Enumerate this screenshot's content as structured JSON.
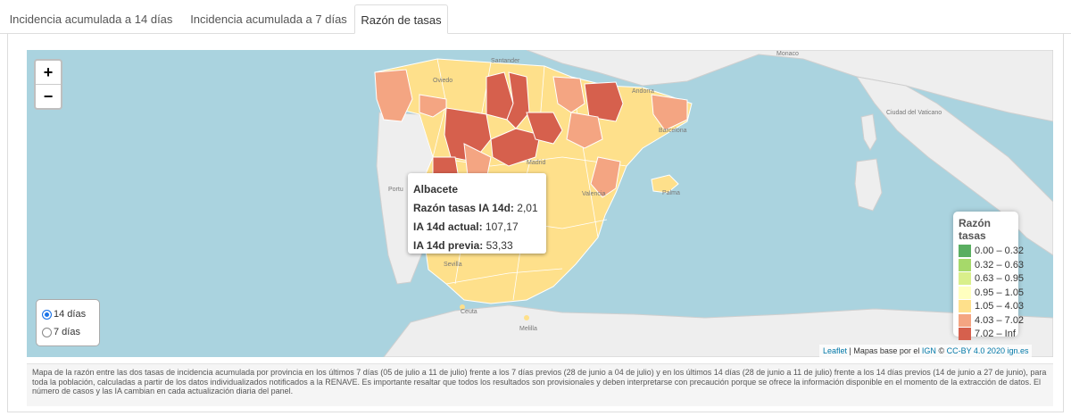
{
  "tabs": [
    {
      "label": "Incidencia acumulada a 14 días",
      "active": false
    },
    {
      "label": "Incidencia acumulada a 7 días",
      "active": false
    },
    {
      "label": "Razón de tasas",
      "active": true
    }
  ],
  "map": {
    "zoom_in": "+",
    "zoom_out": "−",
    "place_labels": {
      "santander": "Santander",
      "oviedo": "Oviedo",
      "andorra": "Andorra",
      "barcelona": "Barcelona",
      "madrid": "Madrid",
      "valencia": "Valencia",
      "palma": "Palma",
      "sevilla": "Sevilla",
      "ceuta": "Ceuta",
      "melilla": "Melilla",
      "portugal": "Portu",
      "vaticano": "Ciudad del Vaticano",
      "monaco": "Monaco"
    },
    "tooltip": {
      "province": "Albacete",
      "ratio_label": "Razón tasas IA 14d:",
      "ratio_value": "2,01",
      "current_label": "IA 14d actual:",
      "current_value": "107,17",
      "previous_label": "IA 14d previa:",
      "previous_value": "53,33"
    },
    "legend": {
      "title": "Razón tasas",
      "items": [
        {
          "label": "0.00 – 0.32",
          "color": "#5aae61"
        },
        {
          "label": "0.32 – 0.63",
          "color": "#a6d96a"
        },
        {
          "label": "0.63 – 0.95",
          "color": "#d9ef8b"
        },
        {
          "label": "0.95 – 1.05",
          "color": "#ffffbf"
        },
        {
          "label": "1.05 – 4.03",
          "color": "#fee08b"
        },
        {
          "label": "4.03 – 7.02",
          "color": "#f4a582"
        },
        {
          "label": "7.02 – Inf",
          "color": "#d6604d"
        }
      ]
    },
    "radio": {
      "option1": "14 días",
      "option2": "7 días",
      "selected": "14 días"
    },
    "attribution": {
      "leaflet": "Leaflet",
      "sep": " | Mapas base por el ",
      "ign": "IGN",
      "cc": " © ",
      "license": "CC-BY 4.0 2020 ign.es"
    }
  },
  "caption": "Mapa de la razón entre las dos tasas de incidencia acumulada por provincia en los últimos 7 días (05 de julio a 11 de julio) frente a los 7 días previos (28 de junio a 04 de julio) y en los últimos 14 días (28 de junio a 11 de julio) frente a los 14 días previos (14 de junio a 27 de junio), para toda la población, calculadas a partir de los datos individualizados notificados a la RENAVE. Es importante resaltar que todos los resultados son provisionales y deben interpretarse con precaución porque se ofrece la información disponible en el momento de la extracción de datos. El número de casos y las IA cambian en cada actualización diaria del panel.",
  "colors": {
    "sea": "#aad3df",
    "land": "#eeeeee",
    "high": "#d6604d",
    "mid": "#f4a582",
    "low": "#fee08b"
  }
}
